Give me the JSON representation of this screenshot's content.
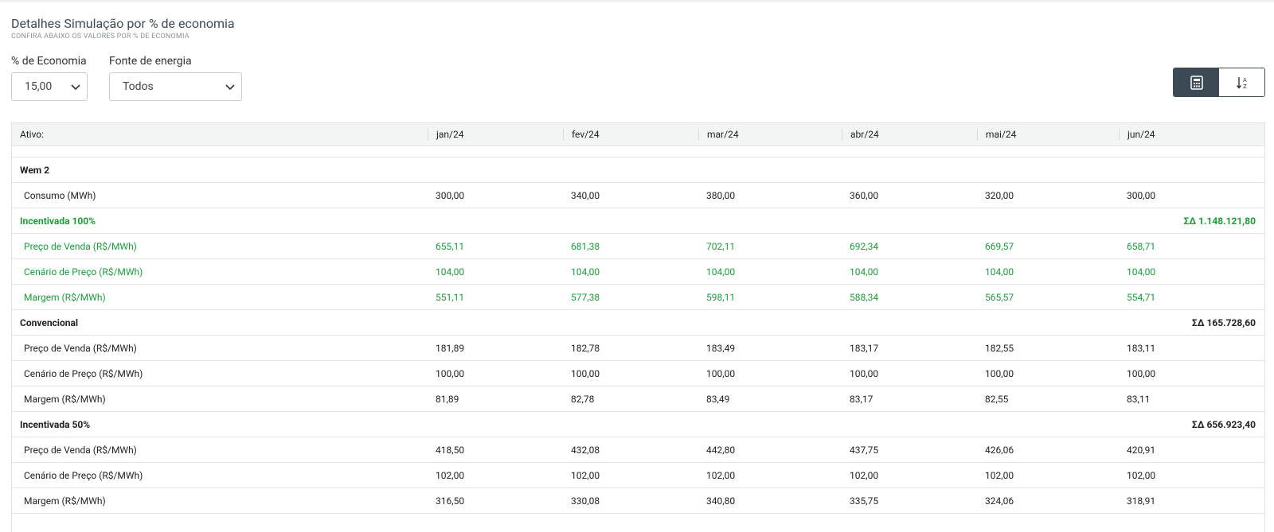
{
  "header": {
    "title": "Detalhes Simulação por % de economia",
    "subtitle": "CONFIRA ABAIXO OS VALORES POR % DE ECONOMIA"
  },
  "filters": [
    {
      "label": "% de Economia",
      "value": "15,00"
    },
    {
      "label": "Fonte de energia",
      "value": "Todos"
    }
  ],
  "table": {
    "columns": [
      "Ativo:",
      "jan/24",
      "fev/24",
      "mar/24",
      "abr/24",
      "mai/24",
      "jun/24"
    ],
    "asset": "Wem 2",
    "consumption": {
      "label": "Consumo (MWh)",
      "values": [
        "300,00",
        "340,00",
        "380,00",
        "360,00",
        "320,00",
        "300,00"
      ]
    },
    "groups": [
      {
        "name": "Incentivada 100%",
        "total": "ΣΔ 1.148.121,80",
        "color": "#1f9a3b",
        "rows": [
          {
            "label": "Preço de Venda (R$/MWh)",
            "values": [
              "655,11",
              "681,38",
              "702,11",
              "692,34",
              "669,57",
              "658,71"
            ]
          },
          {
            "label": "Cenário de Preço (R$/MWh)",
            "values": [
              "104,00",
              "104,00",
              "104,00",
              "104,00",
              "104,00",
              "104,00"
            ]
          },
          {
            "label": "Margem (R$/MWh)",
            "values": [
              "551,11",
              "577,38",
              "598,11",
              "588,34",
              "565,57",
              "554,71"
            ]
          }
        ]
      },
      {
        "name": "Convencional",
        "total": "ΣΔ 165.728,60",
        "color": "#222222",
        "rows": [
          {
            "label": "Preço de Venda (R$/MWh)",
            "values": [
              "181,89",
              "182,78",
              "183,49",
              "183,17",
              "182,55",
              "183,11"
            ]
          },
          {
            "label": "Cenário de Preço (R$/MWh)",
            "values": [
              "100,00",
              "100,00",
              "100,00",
              "100,00",
              "100,00",
              "100,00"
            ]
          },
          {
            "label": "Margem (R$/MWh)",
            "values": [
              "81,89",
              "82,78",
              "83,49",
              "83,17",
              "82,55",
              "83,11"
            ]
          }
        ]
      },
      {
        "name": "Incentivada 50%",
        "total": "ΣΔ 656.923,40",
        "color": "#222222",
        "rows": [
          {
            "label": "Preço de Venda (R$/MWh)",
            "values": [
              "418,50",
              "432,08",
              "442,80",
              "437,75",
              "426,06",
              "420,91"
            ]
          },
          {
            "label": "Cenário de Preço (R$/MWh)",
            "values": [
              "102,00",
              "102,00",
              "102,00",
              "102,00",
              "102,00",
              "102,00"
            ]
          },
          {
            "label": "Margem (R$/MWh)",
            "values": [
              "316,50",
              "330,08",
              "340,80",
              "335,75",
              "324,06",
              "318,91"
            ]
          }
        ]
      }
    ]
  }
}
